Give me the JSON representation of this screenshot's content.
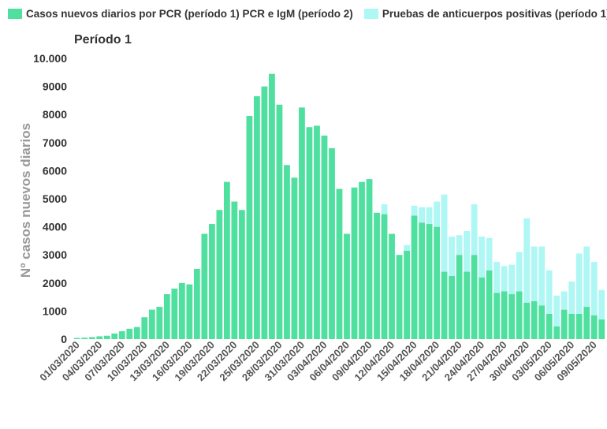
{
  "legend": {
    "items": [
      {
        "label": "Casos nuevos diarios por PCR (período 1) PCR e IgM (período 2)",
        "color": "#4fe0a0"
      },
      {
        "label": "Pruebas de anticuerpos positivas (período 1)",
        "color": "#aef7f4"
      }
    ]
  },
  "chart_data": {
    "type": "bar",
    "stacked": true,
    "title": "Período 1",
    "ylabel": "Nº casos nuevos diarios",
    "xlabel": "",
    "ylim": [
      0,
      10000
    ],
    "yticks": [
      {
        "value": 0,
        "label": "0"
      },
      {
        "value": 1000,
        "label": "1000"
      },
      {
        "value": 2000,
        "label": "2000"
      },
      {
        "value": 3000,
        "label": "3000"
      },
      {
        "value": 4000,
        "label": "4000"
      },
      {
        "value": 5000,
        "label": "5000"
      },
      {
        "value": 6000,
        "label": "6000"
      },
      {
        "value": 7000,
        "label": "7000"
      },
      {
        "value": 8000,
        "label": "8000"
      },
      {
        "value": 9000,
        "label": "9000"
      },
      {
        "value": 10000,
        "label": "10.000"
      }
    ],
    "grid": false,
    "legend_position": "top",
    "x_tick_labels": [
      "01/03/2020",
      "04/03/2020",
      "07/03/2020",
      "10/03/2020",
      "13/03/2020",
      "16/03/2020",
      "19/03/2020",
      "22/03/2020",
      "25/03/2020",
      "28/03/2020",
      "31/03/2020",
      "03/04/2020",
      "06/04/2020",
      "09/04/2020",
      "12/04/2020",
      "15/04/2020",
      "18/04/2020",
      "21/04/2020",
      "24/04/2020",
      "27/04/2020",
      "30/04/2020",
      "03/05/2020",
      "06/05/2020",
      "09/05/2020"
    ],
    "categories": [
      "01/03/2020",
      "02/03/2020",
      "03/03/2020",
      "04/03/2020",
      "05/03/2020",
      "06/03/2020",
      "07/03/2020",
      "08/03/2020",
      "09/03/2020",
      "10/03/2020",
      "11/03/2020",
      "12/03/2020",
      "13/03/2020",
      "14/03/2020",
      "15/03/2020",
      "16/03/2020",
      "17/03/2020",
      "18/03/2020",
      "19/03/2020",
      "20/03/2020",
      "21/03/2020",
      "22/03/2020",
      "23/03/2020",
      "24/03/2020",
      "25/03/2020",
      "26/03/2020",
      "27/03/2020",
      "28/03/2020",
      "29/03/2020",
      "30/03/2020",
      "31/03/2020",
      "01/04/2020",
      "02/04/2020",
      "03/04/2020",
      "04/04/2020",
      "05/04/2020",
      "06/04/2020",
      "07/04/2020",
      "08/04/2020",
      "09/04/2020",
      "10/04/2020",
      "11/04/2020",
      "12/04/2020",
      "13/04/2020",
      "14/04/2020",
      "15/04/2020",
      "16/04/2020",
      "17/04/2020",
      "18/04/2020",
      "19/04/2020",
      "20/04/2020",
      "21/04/2020",
      "22/04/2020",
      "23/04/2020",
      "24/04/2020",
      "25/04/2020",
      "26/04/2020",
      "27/04/2020",
      "28/04/2020",
      "29/04/2020",
      "30/04/2020",
      "01/05/2020",
      "02/05/2020",
      "03/05/2020",
      "04/05/2020",
      "05/05/2020",
      "06/05/2020",
      "07/05/2020",
      "08/05/2020",
      "09/05/2020",
      "10/05/2020"
    ],
    "series": [
      {
        "name": "Casos nuevos diarios por PCR (período 1) PCR e IgM (período 2)",
        "color": "#4fe0a0",
        "values": [
          40,
          50,
          70,
          100,
          120,
          200,
          280,
          370,
          430,
          780,
          1050,
          1150,
          1600,
          1800,
          2000,
          1950,
          2500,
          3750,
          4100,
          4600,
          5600,
          4900,
          4600,
          7950,
          8650,
          9000,
          9450,
          8350,
          6200,
          5750,
          8250,
          7550,
          7600,
          7250,
          6800,
          5350,
          3750,
          5400,
          5600,
          5700,
          4500,
          4450,
          3750,
          3000,
          3150,
          4400,
          4150,
          4100,
          4000,
          2400,
          2250,
          3000,
          2400,
          3000,
          2200,
          2450,
          1650,
          1700,
          1600,
          1700,
          1300,
          1350,
          1200,
          900,
          450,
          1050,
          900,
          900,
          1150,
          850,
          700
        ]
      },
      {
        "name": "Pruebas de anticuerpos positivas (período 1)",
        "color": "#aef7f4",
        "values": [
          0,
          0,
          0,
          0,
          0,
          0,
          0,
          0,
          0,
          0,
          0,
          0,
          0,
          0,
          0,
          0,
          0,
          0,
          0,
          0,
          0,
          0,
          0,
          0,
          0,
          0,
          0,
          0,
          0,
          0,
          0,
          0,
          0,
          0,
          0,
          0,
          0,
          0,
          0,
          0,
          0,
          350,
          0,
          0,
          200,
          350,
          550,
          600,
          900,
          2750,
          1400,
          700,
          1450,
          1800,
          1450,
          1150,
          1100,
          900,
          1050,
          1400,
          3000,
          1950,
          2100,
          1550,
          1100,
          650,
          1150,
          2150,
          2150,
          1900,
          1050
        ]
      }
    ]
  }
}
